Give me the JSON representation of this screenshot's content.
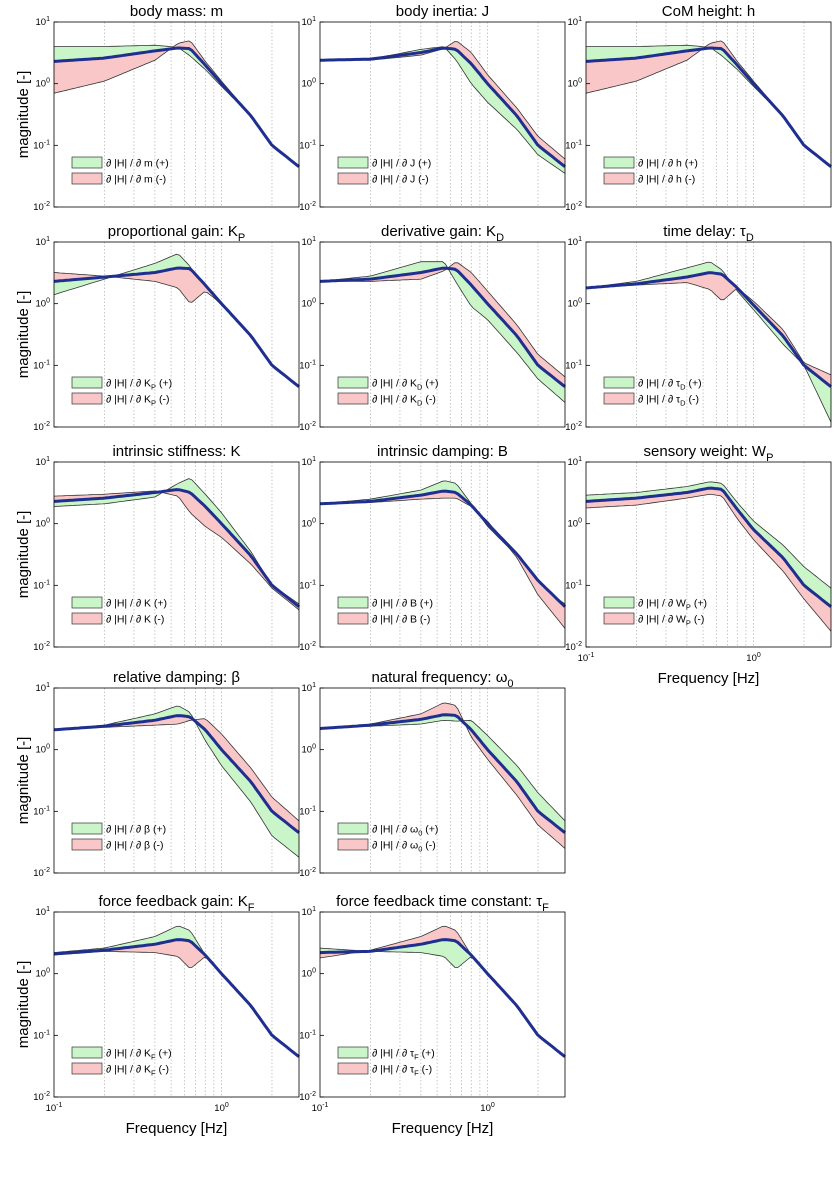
{
  "figure": {
    "ylabel": "magnitude [-]",
    "xlabel": "Frequency [Hz]",
    "colors": {
      "mean": "#1f2f8f",
      "plus_fill": "#c9f5c9",
      "minus_fill": "#f9c7c7",
      "edge": "#333333",
      "grid": "#b9b9b9"
    },
    "x_ticks": [
      {
        "value": 0.1,
        "label": "10",
        "exp": "-1"
      },
      {
        "value": 1.0,
        "label": "10",
        "exp": "0"
      }
    ],
    "y_ticks": [
      {
        "value": 10,
        "label": "10",
        "exp": "1"
      },
      {
        "value": 1,
        "label": "10",
        "exp": "0"
      },
      {
        "value": 0.1,
        "label": "10",
        "exp": "-1"
      },
      {
        "value": 0.01,
        "label": "10",
        "exp": "-2"
      }
    ]
  },
  "chart_data": [
    {
      "id": "m",
      "type": "area",
      "title": "body mass: m",
      "param": "m",
      "param_sub": "",
      "xscale": "log",
      "yscale": "log",
      "xlim": [
        0.1,
        2.9
      ],
      "ylim": [
        0.01,
        10
      ],
      "legend": {
        "plus": "∂ |H| / ∂ m (+)",
        "minus": "∂ |H| / ∂ m (-)"
      },
      "x": [
        0.1,
        0.2,
        0.4,
        0.55,
        0.65,
        0.8,
        1.0,
        1.5,
        2.0,
        2.9
      ],
      "mean": [
        2.3,
        2.6,
        3.4,
        3.8,
        3.7,
        2.0,
        1.0,
        0.3,
        0.1,
        0.045
      ],
      "plus": [
        4.0,
        4.0,
        4.2,
        3.9,
        2.8,
        1.7,
        0.9,
        0.3,
        0.1,
        0.045
      ],
      "minus": [
        0.7,
        1.1,
        2.4,
        4.5,
        5.0,
        2.3,
        1.1,
        0.3,
        0.1,
        0.045
      ],
      "show_xaxis": false
    },
    {
      "id": "J",
      "type": "area",
      "title": "body inertia: J",
      "param": "J",
      "param_sub": "",
      "xscale": "log",
      "yscale": "log",
      "xlim": [
        0.1,
        2.9
      ],
      "ylim": [
        0.01,
        10
      ],
      "legend": {
        "plus": "∂ |H| / ∂ J (+)",
        "minus": "∂ |H| / ∂ J (-)"
      },
      "x": [
        0.1,
        0.2,
        0.4,
        0.55,
        0.65,
        0.8,
        1.0,
        1.5,
        2.0,
        2.9
      ],
      "mean": [
        2.4,
        2.5,
        3.2,
        3.8,
        3.6,
        2.1,
        1.0,
        0.3,
        0.1,
        0.045
      ],
      "plus": [
        2.4,
        2.5,
        3.6,
        4.0,
        2.4,
        1.0,
        0.5,
        0.18,
        0.07,
        0.035
      ],
      "minus": [
        2.4,
        2.4,
        2.9,
        3.7,
        5.0,
        3.2,
        1.4,
        0.4,
        0.14,
        0.06
      ],
      "show_xaxis": false
    },
    {
      "id": "h",
      "type": "area",
      "title": "CoM height: h",
      "param": "h",
      "param_sub": "",
      "xscale": "log",
      "yscale": "log",
      "xlim": [
        0.1,
        2.9
      ],
      "ylim": [
        0.01,
        10
      ],
      "legend": {
        "plus": "∂ |H| / ∂ h (+)",
        "minus": "∂ |H| / ∂ h (-)"
      },
      "x": [
        0.1,
        0.2,
        0.4,
        0.55,
        0.65,
        0.8,
        1.0,
        1.5,
        2.0,
        2.9
      ],
      "mean": [
        2.3,
        2.6,
        3.4,
        3.8,
        3.7,
        2.0,
        1.0,
        0.3,
        0.1,
        0.045
      ],
      "plus": [
        4.0,
        4.0,
        4.2,
        3.9,
        2.8,
        1.7,
        0.9,
        0.3,
        0.1,
        0.045
      ],
      "minus": [
        0.7,
        1.1,
        2.4,
        4.5,
        5.0,
        2.3,
        1.1,
        0.3,
        0.1,
        0.045
      ],
      "show_xaxis": false
    },
    {
      "id": "KP",
      "type": "area",
      "title": "proportional gain: K",
      "param": "K",
      "param_sub": "P",
      "xscale": "log",
      "yscale": "log",
      "xlim": [
        0.1,
        2.9
      ],
      "ylim": [
        0.01,
        10
      ],
      "legend": {
        "plus": "∂ |H| / ∂ K (+)",
        "minus": "∂ |H| / ∂ K (-)"
      },
      "x": [
        0.1,
        0.2,
        0.4,
        0.55,
        0.65,
        0.8,
        1.0,
        1.5,
        2.0,
        2.9
      ],
      "mean": [
        2.3,
        2.7,
        3.2,
        3.8,
        3.7,
        2.0,
        1.0,
        0.3,
        0.1,
        0.045
      ],
      "plus": [
        1.4,
        2.5,
        4.5,
        6.5,
        4.0,
        1.7,
        0.95,
        0.3,
        0.1,
        0.045
      ],
      "minus": [
        3.2,
        2.8,
        2.3,
        1.8,
        1.0,
        1.6,
        1.0,
        0.3,
        0.1,
        0.045
      ],
      "show_xaxis": false
    },
    {
      "id": "KD",
      "type": "area",
      "title": "derivative gain: K",
      "param": "K",
      "param_sub": "D",
      "xscale": "log",
      "yscale": "log",
      "xlim": [
        0.1,
        2.9
      ],
      "ylim": [
        0.01,
        10
      ],
      "legend": {
        "plus": "∂ |H| / ∂ K (+)",
        "minus": "∂ |H| / ∂ K (-)"
      },
      "x": [
        0.1,
        0.2,
        0.4,
        0.55,
        0.65,
        0.8,
        1.0,
        1.5,
        2.0,
        2.9
      ],
      "mean": [
        2.3,
        2.5,
        3.2,
        3.8,
        3.6,
        2.0,
        1.0,
        0.3,
        0.1,
        0.045
      ],
      "plus": [
        2.3,
        2.8,
        4.8,
        4.8,
        2.2,
        0.9,
        0.55,
        0.16,
        0.06,
        0.025
      ],
      "minus": [
        2.3,
        2.3,
        2.5,
        3.4,
        4.8,
        3.2,
        1.6,
        0.45,
        0.15,
        0.065
      ],
      "show_xaxis": false
    },
    {
      "id": "tauD",
      "type": "area",
      "title": "time delay: τ",
      "param": "τ",
      "param_sub": "D",
      "xscale": "log",
      "yscale": "log",
      "xlim": [
        0.1,
        2.9
      ],
      "ylim": [
        0.01,
        10
      ],
      "legend": {
        "plus": "∂ |H| / ∂ τ (+)",
        "minus": "∂ |H| / ∂ τ (-)"
      },
      "x": [
        0.1,
        0.2,
        0.4,
        0.55,
        0.65,
        0.8,
        1.0,
        1.5,
        2.0,
        2.9
      ],
      "mean": [
        1.8,
        2.1,
        2.7,
        3.2,
        3.0,
        1.8,
        0.95,
        0.3,
        0.1,
        0.045
      ],
      "plus": [
        1.8,
        2.3,
        3.8,
        4.8,
        3.5,
        1.6,
        0.8,
        0.22,
        0.1,
        0.012
      ],
      "minus": [
        1.8,
        2.0,
        2.2,
        1.7,
        1.1,
        1.8,
        1.1,
        0.38,
        0.11,
        0.07
      ],
      "show_xaxis": false
    },
    {
      "id": "K",
      "type": "area",
      "title": "intrinsic stiffness: K",
      "param": "K",
      "param_sub": "",
      "xscale": "log",
      "yscale": "log",
      "xlim": [
        0.1,
        2.9
      ],
      "ylim": [
        0.01,
        10
      ],
      "legend": {
        "plus": "∂ |H| / ∂ K (+)",
        "minus": "∂ |H| / ∂ K (-)"
      },
      "x": [
        0.1,
        0.2,
        0.4,
        0.55,
        0.65,
        0.8,
        1.0,
        1.5,
        2.0,
        2.9
      ],
      "mean": [
        2.3,
        2.6,
        3.2,
        3.6,
        3.2,
        1.9,
        1.0,
        0.3,
        0.1,
        0.045
      ],
      "plus": [
        1.9,
        2.1,
        2.7,
        4.5,
        5.5,
        3.0,
        1.5,
        0.35,
        0.1,
        0.05
      ],
      "minus": [
        2.8,
        3.0,
        3.4,
        2.8,
        1.5,
        0.9,
        0.6,
        0.22,
        0.09,
        0.04
      ],
      "show_xaxis": false
    },
    {
      "id": "B",
      "type": "area",
      "title": "intrinsic damping: B",
      "param": "B",
      "param_sub": "",
      "xscale": "log",
      "yscale": "log",
      "xlim": [
        0.1,
        2.9
      ],
      "ylim": [
        0.01,
        10
      ],
      "legend": {
        "plus": "∂ |H| / ∂ B (+)",
        "minus": "∂ |H| / ∂ B (-)"
      },
      "x": [
        0.1,
        0.2,
        0.4,
        0.55,
        0.65,
        0.8,
        1.0,
        1.5,
        2.0,
        2.9
      ],
      "mean": [
        2.1,
        2.3,
        2.9,
        3.4,
        3.2,
        2.0,
        1.0,
        0.32,
        0.12,
        0.045
      ],
      "plus": [
        2.1,
        2.5,
        3.5,
        5.0,
        4.5,
        2.1,
        0.9,
        0.3,
        0.1,
        0.05
      ],
      "minus": [
        2.1,
        2.2,
        2.5,
        2.6,
        2.6,
        1.9,
        1.1,
        0.28,
        0.07,
        0.02
      ],
      "show_xaxis": false
    },
    {
      "id": "WP",
      "type": "area",
      "title": "sensory weight: W",
      "param": "W",
      "param_sub": "P",
      "xscale": "log",
      "yscale": "log",
      "xlim": [
        0.1,
        2.9
      ],
      "ylim": [
        0.01,
        10
      ],
      "legend": {
        "plus": "∂ |H| / ∂ W (+)",
        "minus": "∂ |H| / ∂ W (-)"
      },
      "x": [
        0.1,
        0.2,
        0.4,
        0.55,
        0.65,
        0.8,
        1.0,
        1.5,
        2.0,
        2.9
      ],
      "mean": [
        2.3,
        2.6,
        3.2,
        3.8,
        3.6,
        1.7,
        0.8,
        0.28,
        0.1,
        0.045
      ],
      "plus": [
        2.9,
        3.2,
        4.0,
        4.8,
        4.5,
        2.2,
        1.1,
        0.45,
        0.2,
        0.09
      ],
      "minus": [
        1.8,
        2.0,
        2.6,
        3.0,
        2.8,
        1.2,
        0.55,
        0.17,
        0.06,
        0.018
      ],
      "show_xaxis": true
    },
    {
      "id": "beta",
      "type": "area",
      "title": "relative damping: β",
      "param": "β",
      "param_sub": "",
      "xscale": "log",
      "yscale": "log",
      "xlim": [
        0.1,
        2.9
      ],
      "ylim": [
        0.01,
        10
      ],
      "legend": {
        "plus": "∂ |H| / ∂ β (+)",
        "minus": "∂ |H| / ∂ β (-)"
      },
      "x": [
        0.1,
        0.2,
        0.4,
        0.55,
        0.65,
        0.8,
        1.0,
        1.5,
        2.0,
        2.9
      ],
      "mean": [
        2.1,
        2.4,
        3.0,
        3.6,
        3.4,
        2.1,
        1.0,
        0.3,
        0.1,
        0.045
      ],
      "plus": [
        2.1,
        2.5,
        3.8,
        5.2,
        4.0,
        1.4,
        0.55,
        0.14,
        0.04,
        0.018
      ],
      "minus": [
        2.1,
        2.3,
        2.5,
        2.6,
        3.0,
        3.2,
        1.8,
        0.5,
        0.17,
        0.07
      ],
      "show_xaxis": false
    },
    {
      "id": "omega0",
      "type": "area",
      "title": "natural frequency: ω",
      "param": "ω",
      "param_sub": "0",
      "xscale": "log",
      "yscale": "log",
      "xlim": [
        0.1,
        2.9
      ],
      "ylim": [
        0.01,
        10
      ],
      "legend": {
        "plus": "∂ |H| / ∂ ω (+)",
        "minus": "∂ |H| / ∂ ω (-)"
      },
      "x": [
        0.1,
        0.2,
        0.4,
        0.55,
        0.65,
        0.8,
        1.0,
        1.5,
        2.0,
        2.9
      ],
      "mean": [
        2.2,
        2.5,
        3.1,
        3.7,
        3.6,
        2.1,
        1.0,
        0.3,
        0.1,
        0.045
      ],
      "plus": [
        2.2,
        2.4,
        2.6,
        3.0,
        2.9,
        3.0,
        1.7,
        0.55,
        0.2,
        0.07
      ],
      "minus": [
        2.2,
        2.6,
        3.8,
        5.8,
        5.2,
        1.6,
        0.7,
        0.18,
        0.06,
        0.025
      ],
      "show_xaxis": false
    },
    {
      "id": "KF",
      "type": "area",
      "title": "force feedback gain: K",
      "param": "K",
      "param_sub": "F",
      "xscale": "log",
      "yscale": "log",
      "xlim": [
        0.1,
        2.9
      ],
      "ylim": [
        0.01,
        10
      ],
      "legend": {
        "plus": "∂ |H| / ∂ K (+)",
        "minus": "∂ |H| / ∂ K (-)"
      },
      "x": [
        0.1,
        0.2,
        0.4,
        0.55,
        0.65,
        0.8,
        1.0,
        1.5,
        2.0,
        2.9
      ],
      "mean": [
        2.1,
        2.4,
        3.0,
        3.6,
        3.4,
        2.0,
        1.0,
        0.3,
        0.1,
        0.045
      ],
      "plus": [
        2.2,
        2.6,
        4.0,
        6.0,
        5.0,
        2.0,
        1.0,
        0.3,
        0.1,
        0.045
      ],
      "minus": [
        2.0,
        2.3,
        2.2,
        1.9,
        1.2,
        1.9,
        1.0,
        0.3,
        0.1,
        0.045
      ],
      "show_xaxis": true
    },
    {
      "id": "tauF",
      "type": "area",
      "title": "force feedback time constant: τ",
      "param": "τ",
      "param_sub": "F",
      "xscale": "log",
      "yscale": "log",
      "xlim": [
        0.1,
        2.9
      ],
      "ylim": [
        0.01,
        10
      ],
      "legend": {
        "plus": "∂ |H| / ∂ τ (+)",
        "minus": "∂ |H| / ∂ τ (-)"
      },
      "x": [
        0.1,
        0.2,
        0.4,
        0.55,
        0.65,
        0.8,
        1.0,
        1.5,
        2.0,
        2.9
      ],
      "mean": [
        2.2,
        2.3,
        3.0,
        3.6,
        3.4,
        2.0,
        1.0,
        0.3,
        0.1,
        0.045
      ],
      "plus": [
        2.6,
        2.3,
        2.2,
        1.9,
        1.2,
        1.9,
        1.0,
        0.3,
        0.1,
        0.045
      ],
      "minus": [
        1.8,
        2.4,
        4.0,
        6.0,
        5.0,
        2.0,
        1.0,
        0.3,
        0.1,
        0.045
      ],
      "show_xaxis": true
    }
  ]
}
